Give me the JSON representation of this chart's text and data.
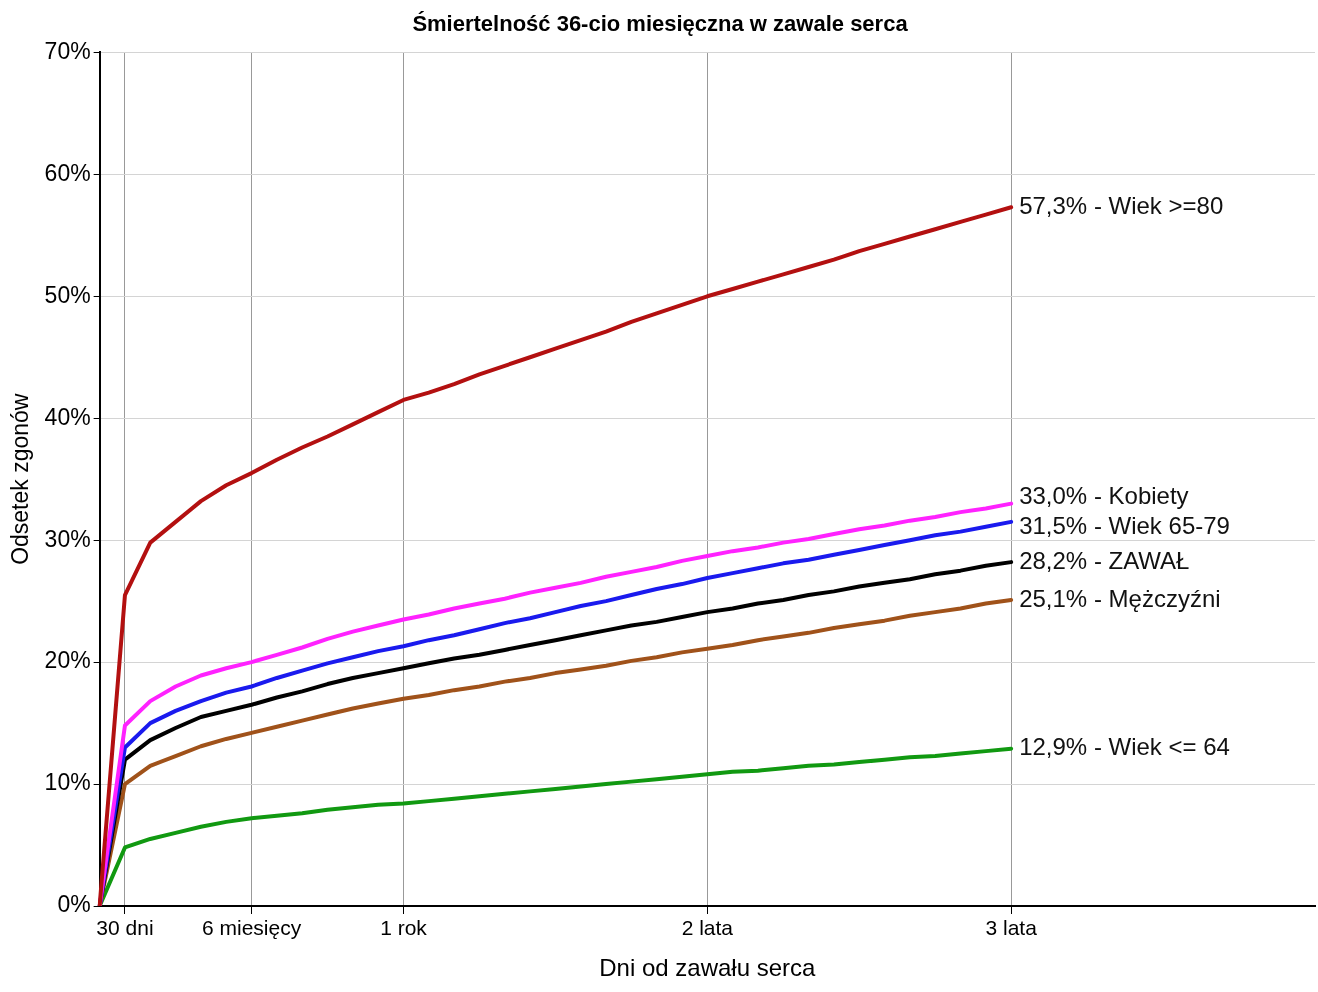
{
  "chart_data": {
    "type": "line",
    "title": "Śmiertelność 36-cio miesięczna w zawale serca",
    "xlabel": "Dni od zawału serca",
    "ylabel": "Odsetek zgonów",
    "categories": [
      null,
      "30 dni",
      null,
      null,
      null,
      null,
      "6 miesięcy",
      null,
      null,
      null,
      null,
      null,
      "1 rok",
      null,
      null,
      null,
      null,
      null,
      null,
      null,
      null,
      null,
      null,
      null,
      "2 lata",
      null,
      null,
      null,
      null,
      null,
      null,
      null,
      null,
      null,
      null,
      null,
      "3 lata",
      null,
      null,
      null,
      null,
      null,
      null,
      null,
      null,
      null,
      null,
      null,
      null
    ],
    "ylim": [
      0,
      70
    ],
    "yticks": [
      {
        "value": 0,
        "label": "0%"
      },
      {
        "value": 10,
        "label": "10%"
      },
      {
        "value": 20,
        "label": "20%"
      },
      {
        "value": 30,
        "label": "30%"
      },
      {
        "value": 40,
        "label": "40%"
      },
      {
        "value": 50,
        "label": "50%"
      },
      {
        "value": 60,
        "label": "60%"
      },
      {
        "value": 70,
        "label": "70%"
      }
    ],
    "grid": true,
    "legend": false,
    "marker": "none",
    "line_style": "solid",
    "series": [
      {
        "name": "57,3% - Wiek >=80",
        "color": "#b31010",
        "values": [
          0,
          25.5,
          29.8,
          31.5,
          33.2,
          34.5,
          35.5,
          36.6,
          37.6,
          38.5,
          39.5,
          40.5,
          41.5,
          42.1,
          42.8,
          43.6,
          44.3,
          45,
          45.7,
          46.4,
          47.1,
          47.9,
          48.6,
          49.3,
          50,
          50.6,
          51.2,
          51.8,
          52.4,
          53,
          53.7,
          54.3,
          54.9,
          55.5,
          56.1,
          56.7,
          57.3,
          null,
          null,
          null,
          null,
          null,
          null,
          null,
          null,
          null,
          null,
          null,
          null
        ]
      },
      {
        "name": "33,0% - Kobiety",
        "color": "#ff22ff",
        "values": [
          0,
          14.8,
          16.8,
          18,
          18.9,
          19.5,
          20,
          20.6,
          21.2,
          21.9,
          22.5,
          23,
          23.5,
          23.9,
          24.4,
          24.8,
          25.2,
          25.7,
          26.1,
          26.5,
          27,
          27.4,
          27.8,
          28.3,
          28.7,
          29.1,
          29.4,
          29.8,
          30.1,
          30.5,
          30.9,
          31.2,
          31.6,
          31.9,
          32.3,
          32.6,
          33.0,
          null,
          null,
          null,
          null,
          null,
          null,
          null,
          null,
          null,
          null,
          null,
          null
        ]
      },
      {
        "name": "31,5% - Wiek 65-79",
        "color": "#1a1aee",
        "values": [
          0,
          13,
          15,
          16,
          16.8,
          17.5,
          18,
          18.7,
          19.3,
          19.9,
          20.4,
          20.9,
          21.3,
          21.8,
          22.2,
          22.7,
          23.2,
          23.6,
          24.1,
          24.6,
          25,
          25.5,
          26,
          26.4,
          26.9,
          27.3,
          27.7,
          28.1,
          28.4,
          28.8,
          29.2,
          29.6,
          30,
          30.4,
          30.7,
          31.1,
          31.5,
          null,
          null,
          null,
          null,
          null,
          null,
          null,
          null,
          null,
          null,
          null,
          null
        ]
      },
      {
        "name": "28,2% - ZAWAŁ",
        "color": "#000000",
        "values": [
          0,
          12,
          13.6,
          14.6,
          15.5,
          16,
          16.5,
          17.1,
          17.6,
          18.2,
          18.7,
          19.1,
          19.5,
          19.9,
          20.3,
          20.6,
          21,
          21.4,
          21.8,
          22.2,
          22.6,
          23,
          23.3,
          23.7,
          24.1,
          24.4,
          24.8,
          25.1,
          25.5,
          25.8,
          26.2,
          26.5,
          26.8,
          27.2,
          27.5,
          27.9,
          28.2,
          null,
          null,
          null,
          null,
          null,
          null,
          null,
          null,
          null,
          null,
          null,
          null
        ]
      },
      {
        "name": "25,1% - Mężczyźni",
        "color": "#a0521a",
        "values": [
          0,
          10,
          11.5,
          12.3,
          13.1,
          13.7,
          14.2,
          14.7,
          15.2,
          15.7,
          16.2,
          16.6,
          17,
          17.3,
          17.7,
          18,
          18.4,
          18.7,
          19.1,
          19.4,
          19.7,
          20.1,
          20.4,
          20.8,
          21.1,
          21.4,
          21.8,
          22.1,
          22.4,
          22.8,
          23.1,
          23.4,
          23.8,
          24.1,
          24.4,
          24.8,
          25.1,
          null,
          null,
          null,
          null,
          null,
          null,
          null,
          null,
          null,
          null,
          null,
          null
        ]
      },
      {
        "name": "12,9% - Wiek <= 64",
        "color": "#119911",
        "values": [
          0,
          4.8,
          5.5,
          6,
          6.5,
          6.9,
          7.2,
          7.4,
          7.6,
          7.9,
          8.1,
          8.3,
          8.4,
          8.6,
          8.8,
          9,
          9.2,
          9.4,
          9.6,
          9.8,
          10,
          10.2,
          10.4,
          10.6,
          10.8,
          11,
          11.1,
          11.3,
          11.5,
          11.6,
          11.8,
          12,
          12.2,
          12.3,
          12.5,
          12.7,
          12.9,
          null,
          null,
          null,
          null,
          null,
          null,
          null,
          null,
          null,
          null,
          null,
          null
        ]
      }
    ]
  }
}
